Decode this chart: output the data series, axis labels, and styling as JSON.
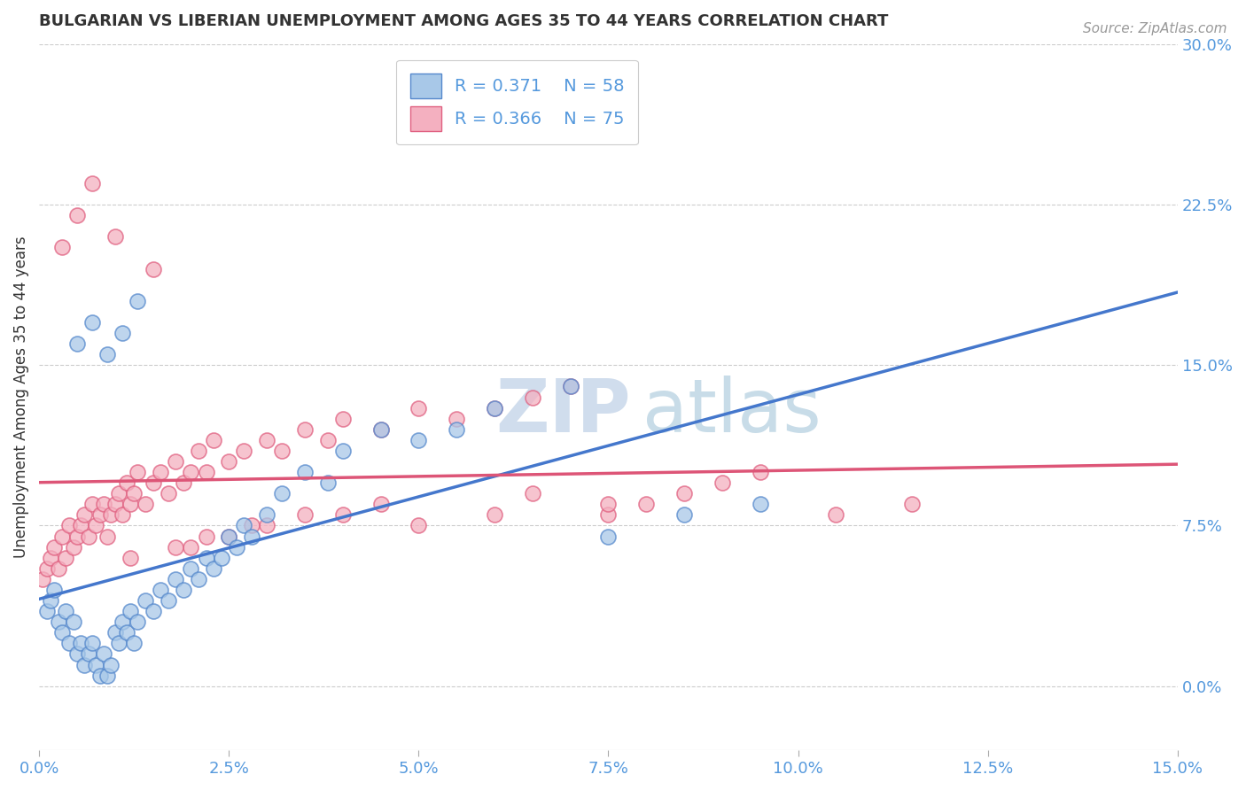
{
  "title": "BULGARIAN VS LIBERIAN UNEMPLOYMENT AMONG AGES 35 TO 44 YEARS CORRELATION CHART",
  "source": "Source: ZipAtlas.com",
  "ylabel": "Unemployment Among Ages 35 to 44 years",
  "xlim": [
    0.0,
    15.0
  ],
  "ylim": [
    -3.0,
    30.0
  ],
  "yticks": [
    0.0,
    7.5,
    15.0,
    22.5,
    30.0
  ],
  "xticks": [
    0.0,
    2.5,
    5.0,
    7.5,
    10.0,
    12.5,
    15.0
  ],
  "bulgarian_color": "#a8c8e8",
  "liberian_color": "#f4b0c0",
  "bulgarian_edge_color": "#5588cc",
  "liberian_edge_color": "#e06080",
  "bulgarian_line_color": "#4477cc",
  "liberian_line_color": "#dd5577",
  "bg_color": "#ffffff",
  "grid_color": "#cccccc",
  "legend_r_bulgarian": "R = 0.371",
  "legend_n_bulgarian": "N = 58",
  "legend_r_liberian": "R = 0.366",
  "legend_n_liberian": "N = 75",
  "axis_label_color": "#5599dd",
  "title_color": "#333333",
  "watermark_zip": "ZIP",
  "watermark_atlas": "atlas",
  "bulgarian_x": [
    0.1,
    0.15,
    0.2,
    0.25,
    0.3,
    0.35,
    0.4,
    0.45,
    0.5,
    0.55,
    0.6,
    0.65,
    0.7,
    0.75,
    0.8,
    0.85,
    0.9,
    0.95,
    1.0,
    1.05,
    1.1,
    1.15,
    1.2,
    1.25,
    1.3,
    1.4,
    1.5,
    1.6,
    1.7,
    1.8,
    1.9,
    2.0,
    2.1,
    2.2,
    2.3,
    2.4,
    2.5,
    2.6,
    2.7,
    2.8,
    3.0,
    3.2,
    3.5,
    3.8,
    4.0,
    4.5,
    5.0,
    5.5,
    6.0,
    7.0,
    7.5,
    8.5,
    9.5,
    0.5,
    0.7,
    0.9,
    1.1,
    1.3
  ],
  "bulgarian_y": [
    3.5,
    4.0,
    4.5,
    3.0,
    2.5,
    3.5,
    2.0,
    3.0,
    1.5,
    2.0,
    1.0,
    1.5,
    2.0,
    1.0,
    0.5,
    1.5,
    0.5,
    1.0,
    2.5,
    2.0,
    3.0,
    2.5,
    3.5,
    2.0,
    3.0,
    4.0,
    3.5,
    4.5,
    4.0,
    5.0,
    4.5,
    5.5,
    5.0,
    6.0,
    5.5,
    6.0,
    7.0,
    6.5,
    7.5,
    7.0,
    8.0,
    9.0,
    10.0,
    9.5,
    11.0,
    12.0,
    11.5,
    12.0,
    13.0,
    14.0,
    7.0,
    8.0,
    8.5,
    16.0,
    17.0,
    15.5,
    16.5,
    18.0
  ],
  "liberian_x": [
    0.05,
    0.1,
    0.15,
    0.2,
    0.25,
    0.3,
    0.35,
    0.4,
    0.45,
    0.5,
    0.55,
    0.6,
    0.65,
    0.7,
    0.75,
    0.8,
    0.85,
    0.9,
    0.95,
    1.0,
    1.05,
    1.1,
    1.15,
    1.2,
    1.25,
    1.3,
    1.4,
    1.5,
    1.6,
    1.7,
    1.8,
    1.9,
    2.0,
    2.1,
    2.2,
    2.3,
    2.5,
    2.7,
    3.0,
    3.2,
    3.5,
    3.8,
    4.0,
    4.5,
    5.0,
    5.5,
    6.0,
    6.5,
    7.0,
    7.5,
    8.0,
    8.5,
    9.0,
    9.5,
    10.5,
    11.5,
    1.0,
    1.5,
    2.0,
    2.5,
    3.0,
    4.0,
    5.0,
    6.0,
    7.5,
    0.3,
    0.5,
    0.7,
    1.2,
    1.8,
    2.2,
    2.8,
    3.5,
    4.5,
    6.5
  ],
  "liberian_y": [
    5.0,
    5.5,
    6.0,
    6.5,
    5.5,
    7.0,
    6.0,
    7.5,
    6.5,
    7.0,
    7.5,
    8.0,
    7.0,
    8.5,
    7.5,
    8.0,
    8.5,
    7.0,
    8.0,
    8.5,
    9.0,
    8.0,
    9.5,
    8.5,
    9.0,
    10.0,
    8.5,
    9.5,
    10.0,
    9.0,
    10.5,
    9.5,
    10.0,
    11.0,
    10.0,
    11.5,
    10.5,
    11.0,
    11.5,
    11.0,
    12.0,
    11.5,
    12.5,
    12.0,
    13.0,
    12.5,
    13.0,
    13.5,
    14.0,
    8.0,
    8.5,
    9.0,
    9.5,
    10.0,
    8.0,
    8.5,
    21.0,
    19.5,
    6.5,
    7.0,
    7.5,
    8.0,
    7.5,
    8.0,
    8.5,
    20.5,
    22.0,
    23.5,
    6.0,
    6.5,
    7.0,
    7.5,
    8.0,
    8.5,
    9.0
  ]
}
